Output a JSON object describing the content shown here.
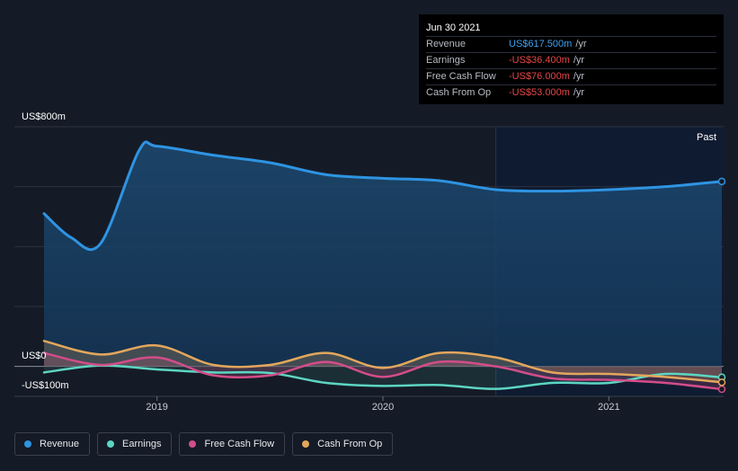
{
  "tooltip": {
    "date": "Jun 30 2021",
    "rows": [
      {
        "label": "Revenue",
        "value": "US$617.500m",
        "unit": "/yr"
      },
      {
        "label": "Earnings",
        "value": "-US$36.400m",
        "unit": "/yr"
      },
      {
        "label": "Free Cash Flow",
        "value": "-US$76.000m",
        "unit": "/yr"
      },
      {
        "label": "Cash From Op",
        "value": "-US$53.000m",
        "unit": "/yr"
      }
    ]
  },
  "past_label": "Past",
  "y_axis_labels": {
    "top": "US$800m",
    "zero": "US$0",
    "bottom": "-US$100m"
  },
  "colors": {
    "background": "#151b26",
    "revenue": "#2e94e2",
    "earnings": "#5dd6c2",
    "free_cash_flow": "#d24d8a",
    "cash_from_op": "#e3a75c",
    "negative_value": "#e54545",
    "positive_value": "#3fa1f0"
  },
  "chart_data": {
    "type": "area",
    "x_range": [
      2018.5,
      2021.5
    ],
    "ylim": [
      -100,
      800
    ],
    "xticks": [
      {
        "value": 2019,
        "label": "2019"
      },
      {
        "value": 2020,
        "label": "2020"
      },
      {
        "value": 2021,
        "label": "2021"
      }
    ],
    "past_start": 2020.5,
    "series": [
      {
        "name": "Revenue",
        "key": "revenue",
        "points": [
          [
            2018.5,
            510
          ],
          [
            2018.62,
            430
          ],
          [
            2018.75,
            410
          ],
          [
            2018.92,
            720
          ],
          [
            2019.0,
            735
          ],
          [
            2019.25,
            705
          ],
          [
            2019.5,
            680
          ],
          [
            2019.75,
            640
          ],
          [
            2020.0,
            628
          ],
          [
            2020.25,
            620
          ],
          [
            2020.5,
            590
          ],
          [
            2020.75,
            585
          ],
          [
            2021.0,
            590
          ],
          [
            2021.25,
            600
          ],
          [
            2021.5,
            617.5
          ]
        ]
      },
      {
        "name": "Earnings",
        "key": "earnings",
        "points": [
          [
            2018.5,
            -20
          ],
          [
            2018.75,
            3
          ],
          [
            2019.0,
            -10
          ],
          [
            2019.25,
            -20
          ],
          [
            2019.5,
            -22
          ],
          [
            2019.75,
            -55
          ],
          [
            2020.0,
            -65
          ],
          [
            2020.25,
            -62
          ],
          [
            2020.5,
            -75
          ],
          [
            2020.75,
            -55
          ],
          [
            2021.0,
            -55
          ],
          [
            2021.25,
            -25
          ],
          [
            2021.5,
            -36.4
          ]
        ]
      },
      {
        "name": "Free Cash Flow",
        "key": "free_cash_flow",
        "points": [
          [
            2018.5,
            45
          ],
          [
            2018.75,
            5
          ],
          [
            2019.0,
            30
          ],
          [
            2019.25,
            -30
          ],
          [
            2019.5,
            -30
          ],
          [
            2019.75,
            15
          ],
          [
            2020.0,
            -35
          ],
          [
            2020.25,
            15
          ],
          [
            2020.5,
            0
          ],
          [
            2020.75,
            -40
          ],
          [
            2021.0,
            -45
          ],
          [
            2021.25,
            -55
          ],
          [
            2021.5,
            -76
          ]
        ]
      },
      {
        "name": "Cash From Op",
        "key": "cash_from_op",
        "points": [
          [
            2018.5,
            85
          ],
          [
            2018.75,
            40
          ],
          [
            2019.0,
            70
          ],
          [
            2019.25,
            5
          ],
          [
            2019.5,
            5
          ],
          [
            2019.75,
            45
          ],
          [
            2020.0,
            -5
          ],
          [
            2020.25,
            45
          ],
          [
            2020.5,
            30
          ],
          [
            2020.75,
            -20
          ],
          [
            2021.0,
            -25
          ],
          [
            2021.25,
            -35
          ],
          [
            2021.5,
            -53
          ]
        ]
      }
    ]
  }
}
